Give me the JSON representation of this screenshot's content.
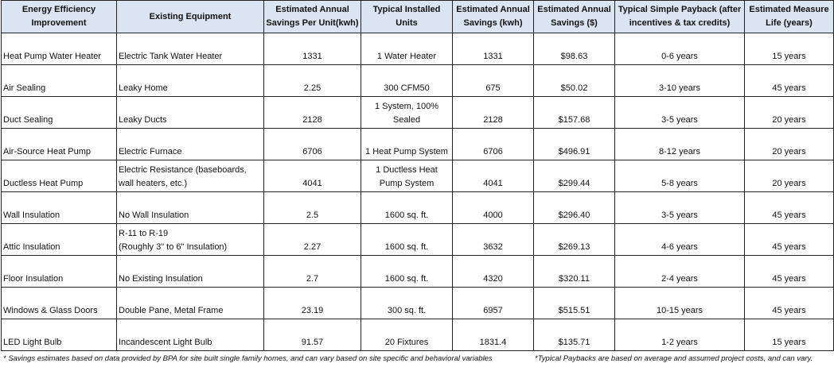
{
  "table": {
    "headers": [
      "Energy Efficiency Improvement",
      "Existing Equipment",
      "Estimated Annual Savings Per Unit(kwh)",
      "Typical Installed Units",
      "Estimated Annual Savings (kwh)",
      "Estimated Annual Savings ($)",
      "Typical Simple Payback (after incentives & tax credits)",
      "Estimated Measure Life (years)"
    ],
    "rows": [
      [
        "Heat Pump Water Heater",
        "Electric Tank Water Heater",
        "1331",
        "1 Water Heater",
        "1331",
        "$98.63",
        "0-6 years",
        "15 years"
      ],
      [
        "Air Sealing",
        "Leaky Home",
        "2.25",
        "300 CFM50",
        "675",
        "$50.02",
        "3-10 years",
        "45 years"
      ],
      [
        "Duct Sealing",
        "Leaky Ducts",
        "2128",
        "1 System, 100%\nSealed",
        "2128",
        "$157.68",
        "3-5 years",
        "20 years"
      ],
      [
        "Air-Source Heat Pump",
        "Electric Furnace",
        "6706",
        "1 Heat Pump System",
        "6706",
        "$496.91",
        "8-12 years",
        "20 years"
      ],
      [
        "Ductless Heat Pump",
        "Electric Resistance (baseboards,\nwall heaters, etc.)",
        "4041",
        "1 Ductless Heat\nPump System",
        "4041",
        "$299.44",
        "5-8 years",
        "20 years"
      ],
      [
        "Wall Insulation",
        "No Wall Insulation",
        "2.5",
        "1600 sq. ft.",
        "4000",
        "$296.40",
        "3-5 years",
        "45 years"
      ],
      [
        "Attic Insulation",
        "R-11 to R-19\n(Roughly 3\" to 6\" Insulation)",
        "2.27",
        "1600 sq. ft.",
        "3632",
        "$269.13",
        "4-6 years",
        "45 years"
      ],
      [
        "Floor Insulation",
        "No Existing Insulation",
        "2.7",
        "1600 sq. ft.",
        "4320",
        "$320.11",
        "2-4 years",
        "45 years"
      ],
      [
        "Windows & Glass Doors",
        "Double Pane, Metal Frame",
        "23.19",
        "300 sq. ft.",
        "6957",
        "$515.51",
        "10-15 years",
        "45 years"
      ],
      [
        "LED Light Bulb",
        "Incandescent Light Bulb",
        "91.57",
        "20 Fixtures",
        "1831.4",
        "$135.71",
        "1-2 years",
        "15 years"
      ]
    ]
  },
  "footnotes": [
    "* Savings estimates based on data provided by BPA for site built single family homes, and can vary based on site specific and behavioral variables",
    "*Typical Paybacks are based on average and assumed project costs, and can vary."
  ]
}
